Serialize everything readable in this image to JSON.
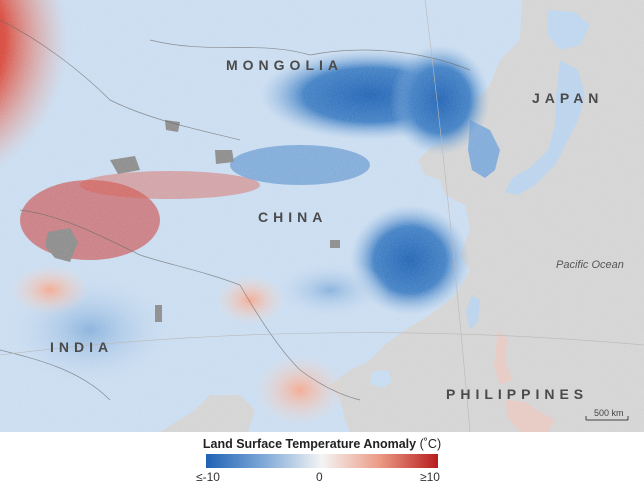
{
  "map": {
    "labels": {
      "mongolia": "MONGOLIA",
      "china": "CHINA",
      "japan": "JAPAN",
      "india": "INDIA",
      "philippines": "PHILIPPINES",
      "ocean": "Pacific Ocean"
    },
    "scalebar": "500 km",
    "colors": {
      "cold": "#1f62b4",
      "neutral": "#f4f4f4",
      "warm": "#b71d1d",
      "no_data": "#8a8a8a",
      "ocean": "#d3d3d3"
    }
  },
  "legend": {
    "title": "Land Surface Temperature Anomaly",
    "unit": "(˚C)",
    "min_label": "≤-10",
    "mid_label": "0",
    "max_label": "≥10"
  }
}
